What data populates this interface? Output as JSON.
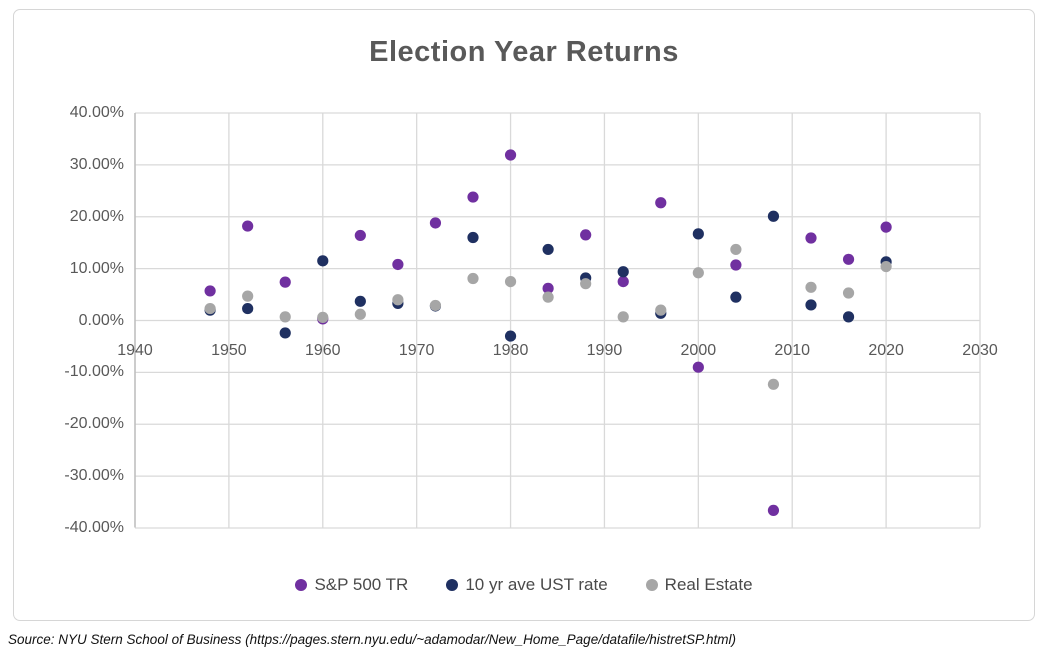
{
  "chart": {
    "title": "Election Year Returns",
    "source_text": "Source: NYU Stern School of Business (https://pages.stern.nyu.edu/~adamodar/New_Home_Page/datafile/histretSP.html)",
    "colors": {
      "sp500": "#7030A0",
      "ust": "#1F3061",
      "real_estate": "#A6A6A6",
      "gridline": "#D9D9D9",
      "axis_line": "#BFBFBF",
      "title_text": "#595959",
      "tick_text": "#595959",
      "legend_text": "#4A4A4A",
      "frame_border": "#D6D6D6"
    }
  },
  "chart_data": {
    "type": "scatter",
    "title": "Election Year Returns",
    "xlabel": "",
    "ylabel": "",
    "xlim": [
      1940,
      2030
    ],
    "ylim": [
      -40,
      40
    ],
    "grid": true,
    "legend_position": "bottom",
    "x_ticks": [
      1940,
      1950,
      1960,
      1970,
      1980,
      1990,
      2000,
      2010,
      2020,
      2030
    ],
    "x_tick_labels": [
      "1940",
      "1950",
      "1960",
      "1970",
      "1980",
      "1990",
      "2000",
      "2010",
      "2020",
      "2030"
    ],
    "y_ticks": [
      40,
      30,
      20,
      10,
      0,
      -10,
      -20,
      -30,
      -40
    ],
    "y_tick_labels": [
      "40.00%",
      "30.00%",
      "20.00%",
      "10.00%",
      "0.00%",
      "-10.00%",
      "-20.00%",
      "-30.00%",
      "-40.00%"
    ],
    "x": [
      1948,
      1952,
      1956,
      1960,
      1964,
      1968,
      1972,
      1976,
      1980,
      1984,
      1988,
      1992,
      1996,
      2000,
      2004,
      2008,
      2012,
      2016,
      2020
    ],
    "series": [
      {
        "name": "S&P 500 TR",
        "color": "#7030A0",
        "values": [
          5.7,
          18.2,
          7.4,
          0.3,
          16.4,
          10.8,
          18.8,
          23.8,
          31.9,
          6.2,
          16.5,
          7.5,
          22.7,
          -9.0,
          10.7,
          -36.6,
          15.9,
          11.8,
          18.0
        ]
      },
      {
        "name": "10 yr ave UST rate",
        "color": "#1F3061",
        "values": [
          2.0,
          2.3,
          -2.4,
          11.5,
          3.7,
          3.3,
          2.8,
          16.0,
          -3.0,
          13.7,
          8.2,
          9.4,
          1.4,
          16.7,
          4.5,
          20.1,
          3.0,
          0.7,
          11.3
        ]
      },
      {
        "name": "Real Estate",
        "color": "#A6A6A6",
        "values": [
          2.3,
          4.7,
          0.7,
          0.6,
          1.2,
          4.0,
          2.9,
          8.1,
          7.5,
          4.5,
          7.1,
          0.7,
          2.0,
          9.2,
          13.7,
          -12.3,
          6.4,
          5.3,
          10.4
        ]
      }
    ]
  }
}
